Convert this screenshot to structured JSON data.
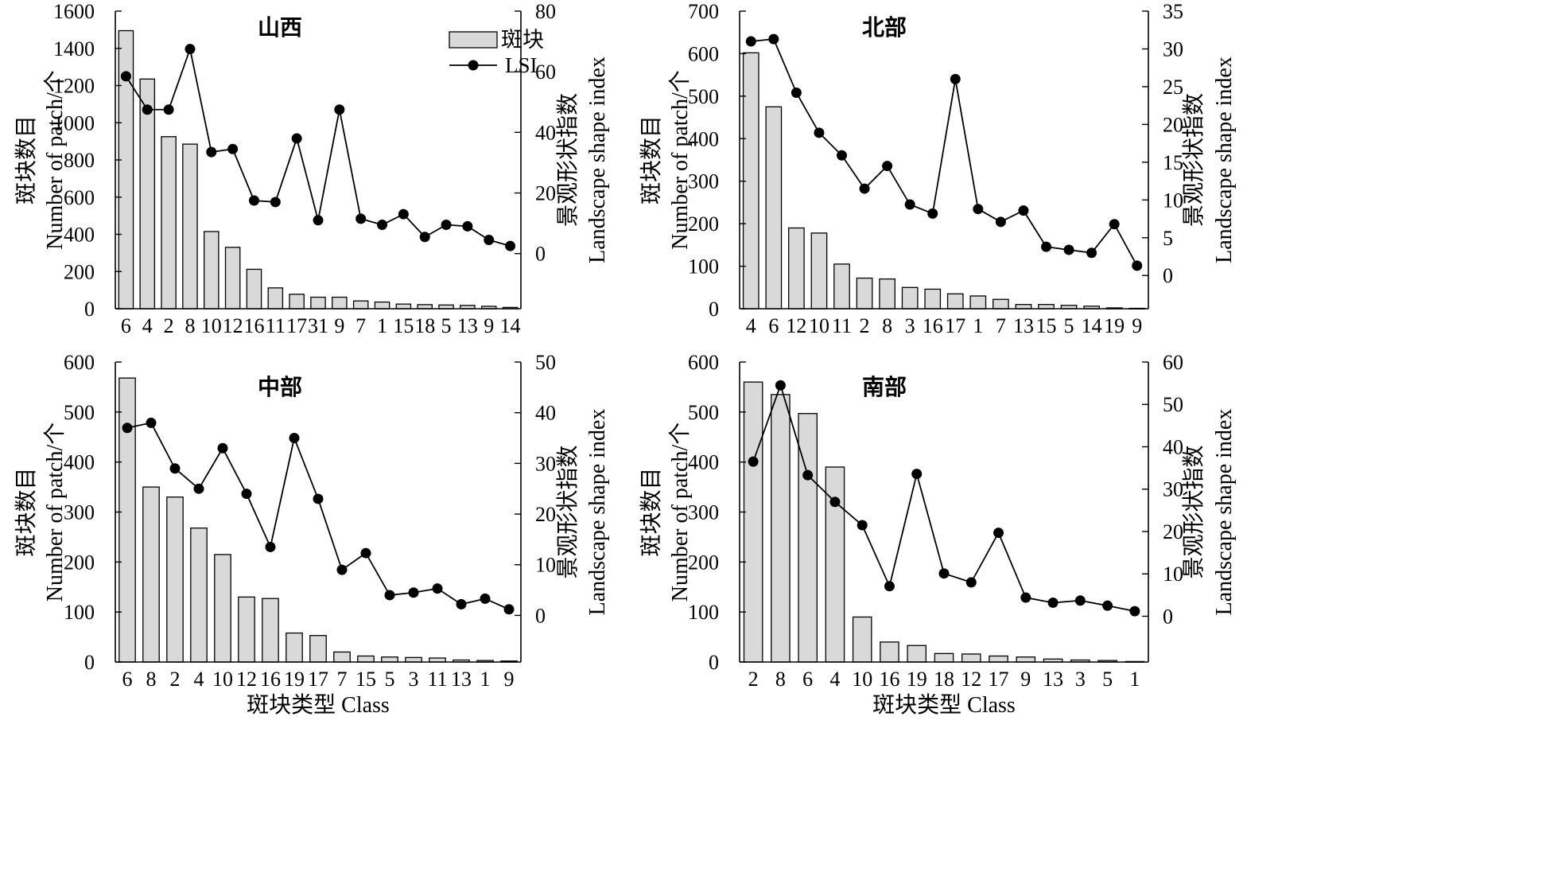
{
  "chart_data": [
    {
      "type": "bar",
      "title": "山西",
      "categories": [
        "6",
        "4",
        "2",
        "8",
        "10",
        "12",
        "16",
        "11",
        "17",
        "31",
        "9",
        "7",
        "1",
        "15",
        "18",
        "5",
        "13",
        "9",
        "14"
      ],
      "series": [
        {
          "name": "斑块",
          "type": "bar",
          "axis": "left",
          "values": [
            1495,
            1235,
            925,
            885,
            415,
            330,
            212,
            112,
            78,
            62,
            62,
            42,
            36,
            25,
            22,
            20,
            18,
            13,
            7
          ]
        },
        {
          "name": "LSI",
          "type": "line",
          "axis": "right",
          "values": [
            58.5,
            47.5,
            47.5,
            67.5,
            33.5,
            34.5,
            17.5,
            17,
            38,
            11,
            47.5,
            11.5,
            9.5,
            13,
            5.5,
            9.5,
            9,
            4.5,
            2.5
          ]
        }
      ],
      "ylabel": "斑块数目",
      "ylabel_en": "Number of patch/个",
      "ylim": [
        0,
        1600
      ],
      "yticks": [
        0,
        200,
        400,
        600,
        800,
        1000,
        1200,
        1400,
        1600
      ],
      "y2label": "景观形状指数",
      "y2label_en": "Landscape shape index",
      "y2lim": [
        -18.2,
        80
      ],
      "y2ticks": [
        0,
        20,
        40,
        60,
        80
      ],
      "legend": "top-center"
    },
    {
      "type": "bar",
      "title": "北部",
      "categories": [
        "4",
        "6",
        "12",
        "10",
        "11",
        "2",
        "8",
        "3",
        "16",
        "17",
        "1",
        "7",
        "13",
        "15",
        "5",
        "14",
        "19",
        "9"
      ],
      "series": [
        {
          "name": "斑块",
          "type": "bar",
          "axis": "left",
          "values": [
            602,
            475,
            190,
            178,
            105,
            72,
            70,
            50,
            46,
            35,
            30,
            22,
            10,
            10,
            8,
            6,
            2,
            1
          ]
        },
        {
          "name": "LSI",
          "type": "line",
          "axis": "right",
          "values": [
            31,
            31.3,
            24.2,
            18.9,
            15.9,
            11.5,
            14.5,
            9.4,
            8.2,
            26,
            8.8,
            7.1,
            8.6,
            3.8,
            3.4,
            3,
            6.8,
            1.3
          ]
        }
      ],
      "ylabel": "斑块数目",
      "ylabel_en": "Number of patch/个",
      "ylim": [
        0,
        700
      ],
      "yticks": [
        0,
        100,
        200,
        300,
        400,
        500,
        600,
        700
      ],
      "y2label": "景观形状指数",
      "y2label_en": "Landscape shape index",
      "y2lim": [
        -4.4,
        35
      ],
      "y2ticks": [
        0,
        5,
        10,
        15,
        20,
        25,
        30,
        35
      ]
    },
    {
      "type": "bar",
      "title": "中部",
      "categories": [
        "6",
        "8",
        "2",
        "4",
        "10",
        "12",
        "16",
        "19",
        "17",
        "7",
        "15",
        "5",
        "3",
        "11",
        "13",
        "1",
        "9"
      ],
      "series": [
        {
          "name": "斑块",
          "type": "bar",
          "axis": "left",
          "values": [
            568,
            350,
            330,
            268,
            215,
            130,
            127,
            58,
            53,
            20,
            12,
            10,
            9,
            8,
            4,
            3,
            2
          ]
        },
        {
          "name": "LSI",
          "type": "line",
          "axis": "right",
          "values": [
            37,
            38,
            29,
            25,
            33,
            24,
            13.5,
            35,
            23,
            9,
            12.3,
            4,
            4.5,
            5.3,
            2.2,
            3.3,
            1.2
          ]
        }
      ],
      "xlabel": "斑块类型 Class",
      "ylabel": "斑块数目",
      "ylabel_en": "Number of patch/个",
      "ylim": [
        0,
        600
      ],
      "yticks": [
        0,
        100,
        200,
        300,
        400,
        500,
        600
      ],
      "y2label": "景观形状指数",
      "y2label_en": "Landscape shape index",
      "y2lim": [
        -9.2,
        50
      ],
      "y2ticks": [
        0,
        10,
        20,
        30,
        40,
        50
      ]
    },
    {
      "type": "bar",
      "title": "南部",
      "categories": [
        "2",
        "8",
        "6",
        "4",
        "10",
        "16",
        "19",
        "18",
        "12",
        "17",
        "9",
        "13",
        "3",
        "5",
        "1"
      ],
      "series": [
        {
          "name": "斑块",
          "type": "bar",
          "axis": "left",
          "values": [
            560,
            535,
            497,
            390,
            90,
            40,
            33,
            17,
            16,
            12,
            10,
            6,
            4,
            3,
            1
          ]
        },
        {
          "name": "LSI",
          "type": "line",
          "axis": "right",
          "values": [
            36.5,
            54.5,
            33.3,
            27,
            21.5,
            7.1,
            33.6,
            10.1,
            8,
            19.7,
            4.4,
            3.2,
            3.7,
            2.5,
            1.2
          ]
        }
      ],
      "xlabel": "斑块类型 Class",
      "ylabel": "斑块数目",
      "ylabel_en": "Number of patch/个",
      "ylim": [
        0,
        600
      ],
      "yticks": [
        0,
        100,
        200,
        300,
        400,
        500,
        600
      ],
      "y2label": "景观形状指数",
      "y2label_en": "Landscape shape index",
      "y2lim": [
        -10.8,
        60
      ],
      "y2ticks": [
        0,
        10,
        20,
        30,
        40,
        50,
        60
      ]
    }
  ],
  "colors": {
    "bar_fill": "#d9d9d9",
    "bar_stroke": "#000000",
    "line": "#000000",
    "marker": "#000000",
    "axis": "#000000"
  },
  "legend": {
    "bar_label": "斑块",
    "line_label": "LSI"
  }
}
